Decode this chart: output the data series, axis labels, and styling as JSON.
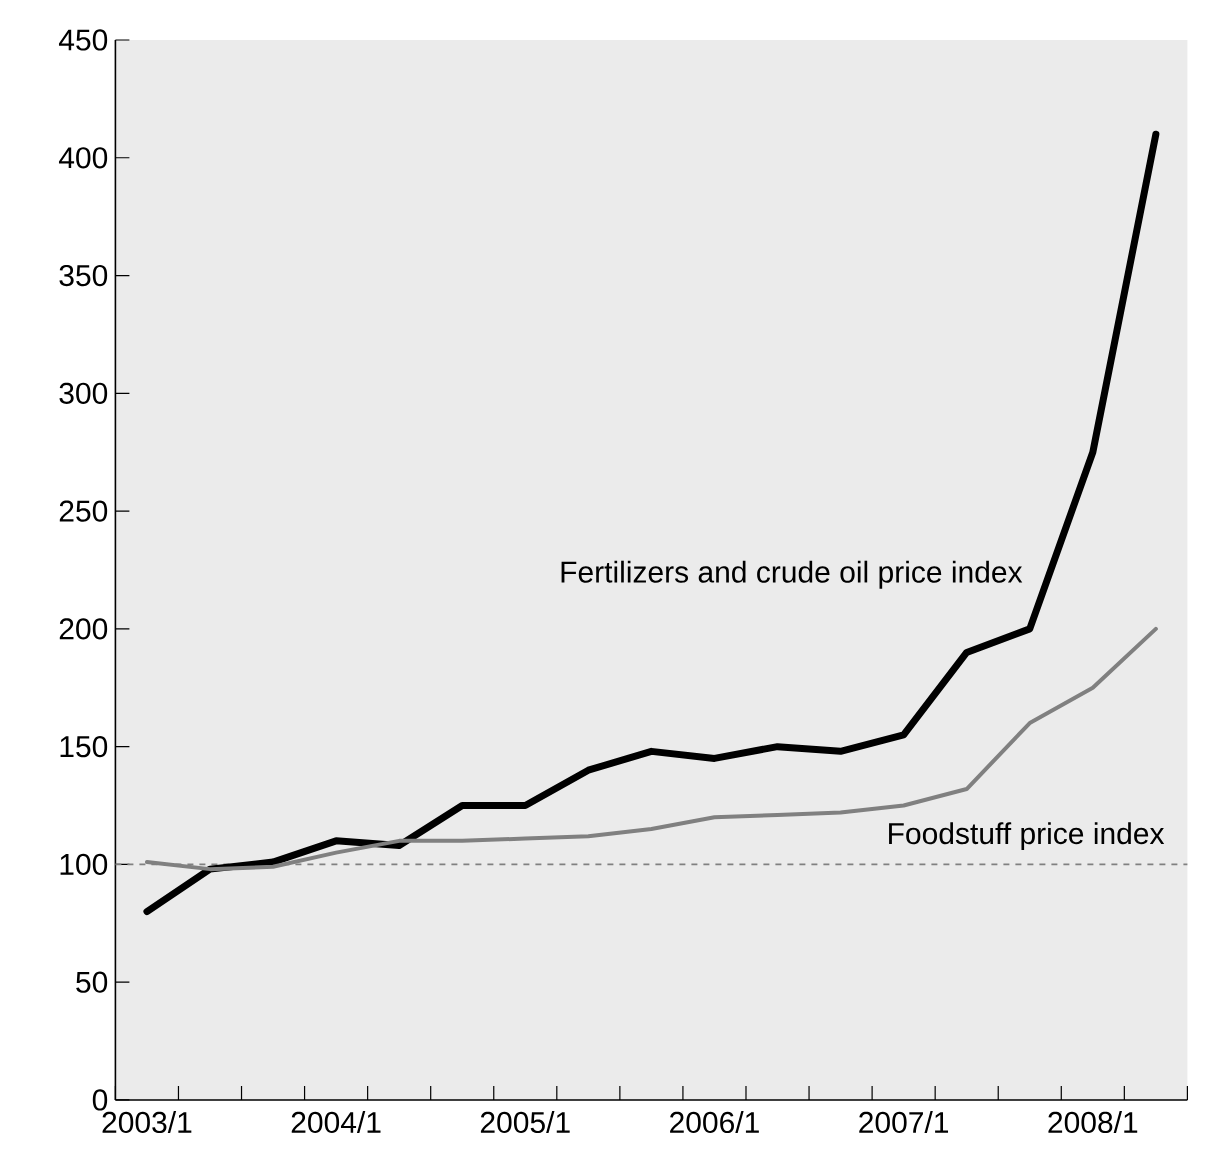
{
  "chart_data": {
    "type": "line",
    "categories": [
      "2003/1",
      null,
      null,
      "2004/1",
      null,
      null,
      "2005/1",
      null,
      null,
      "2006/1",
      null,
      null,
      "2007/1",
      null,
      null,
      "2008/1",
      null
    ],
    "series": [
      {
        "name": "Fertilizers and crude oil price index",
        "color": "#000000",
        "values": [
          80,
          98,
          101,
          110,
          108,
          125,
          125,
          140,
          148,
          145,
          150,
          148,
          155,
          190,
          200,
          275,
          410
        ]
      },
      {
        "name": "Foodstuff price index",
        "color": "#808080",
        "values": [
          101,
          98,
          99,
          105,
          110,
          110,
          111,
          112,
          115,
          120,
          121,
          122,
          125,
          132,
          160,
          175,
          200
        ]
      }
    ],
    "ylim": [
      0,
      450
    ],
    "yticks": [
      0,
      50,
      100,
      150,
      200,
      250,
      300,
      350,
      400,
      450
    ],
    "ref_lines": [
      {
        "axis": "y",
        "value": 100,
        "color": "#808080",
        "line_style": "dashed"
      }
    ],
    "marker": "none",
    "line_style": "solid"
  }
}
